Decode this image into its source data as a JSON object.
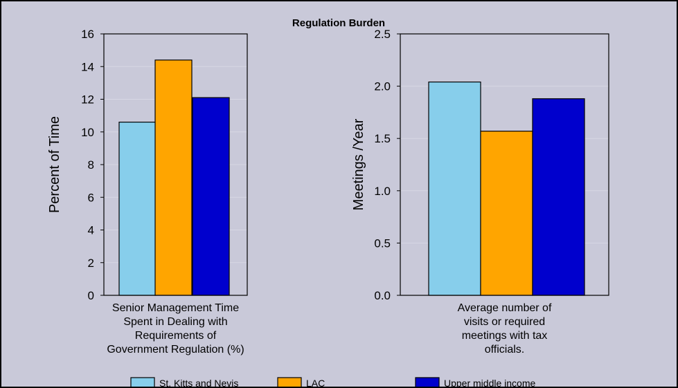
{
  "chart_data": [
    {
      "type": "bar",
      "title": "Regulation Burden",
      "categories": [
        "Senior Management Time Spent in Dealing with Requirements of Government Regulation (%)"
      ],
      "category_lines": [
        "Senior Management Time",
        "Spent in Dealing with",
        "Requirements of",
        "Government Regulation (%)"
      ],
      "ylabel": "Percent of Time",
      "ylim": [
        0,
        16
      ],
      "yticks": [
        "0",
        "2",
        "4",
        "6",
        "8",
        "10",
        "12",
        "14",
        "16"
      ],
      "series": [
        {
          "name": "St. Kitts and Nevis",
          "values": [
            10.6
          ]
        },
        {
          "name": "LAC",
          "values": [
            14.4
          ]
        },
        {
          "name": "Upper middle income",
          "values": [
            12.1
          ]
        }
      ]
    },
    {
      "type": "bar",
      "categories": [
        "Average number of visits or required meetings with tax officials."
      ],
      "category_lines": [
        "Average number of",
        "visits or required",
        "meetings with tax",
        "officials."
      ],
      "ylabel": "Meetings /Year",
      "ylim": [
        0,
        2.5
      ],
      "yticks": [
        "0.0",
        "0.5",
        "1.0",
        "1.5",
        "2.0",
        "2.5"
      ],
      "series": [
        {
          "name": "St. Kitts and Nevis",
          "values": [
            2.04
          ]
        },
        {
          "name": "LAC",
          "values": [
            1.57
          ]
        },
        {
          "name": "Upper middle income",
          "values": [
            1.88
          ]
        }
      ]
    }
  ],
  "legend": {
    "placement": "bottom",
    "items": [
      "St. Kitts and Nevis",
      "LAC",
      "Upper middle income"
    ]
  },
  "colors": {
    "background": "#c9c9d9",
    "st_kitts": "#87ceeb",
    "lac": "#ffa500",
    "upper_middle": "#0000cd"
  }
}
